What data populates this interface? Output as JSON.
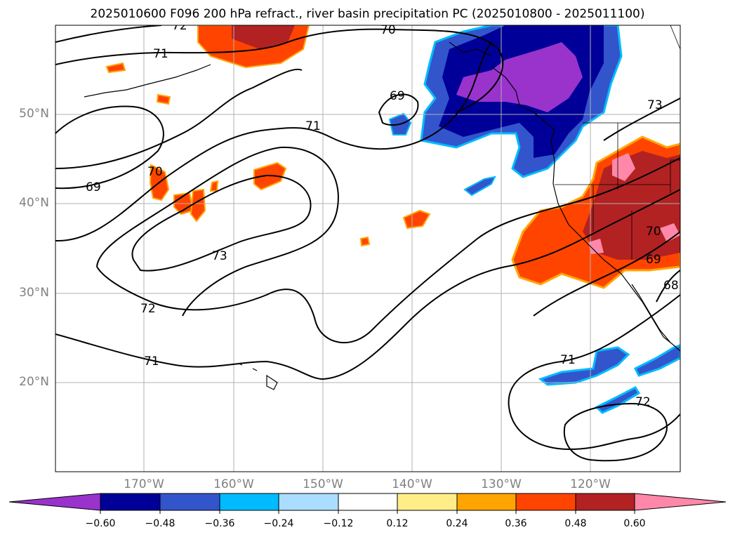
{
  "title": "2025010600 F096 200 hPa refract., river basin precipitation PC (2025010800 - 2025011100)",
  "lat_labels": [
    "50°N",
    "40°N",
    "30°N",
    "20°N"
  ],
  "lon_labels": [
    "170°W",
    "160°W",
    "150°W",
    "140°W",
    "130°W",
    "120°W"
  ],
  "contour_labels": [
    "72",
    "70",
    "71",
    "69",
    "71",
    "70",
    "69",
    "73",
    "73",
    "70",
    "69",
    "68",
    "72",
    "71",
    "71",
    "72"
  ],
  "colorbar": {
    "ticks": [
      "−0.60",
      "−0.48",
      "−0.36",
      "−0.24",
      "−0.12",
      "0.12",
      "0.24",
      "0.36",
      "0.48",
      "0.60"
    ],
    "colors": [
      "#9933cc",
      "#000099",
      "#3355cc",
      "#00bbff",
      "#aaddff",
      "#ffffff",
      "#ffee88",
      "#ffa500",
      "#ff4400",
      "#b22222",
      "#ff88aa"
    ]
  },
  "colors": {
    "purple": "#9933cc",
    "navy": "#000099",
    "blue": "#3355cc",
    "cyan": "#00bbff",
    "lightblue": "#aaddff",
    "yellow": "#ffee88",
    "orange": "#ffa500",
    "redorange": "#ff4400",
    "darkred": "#b22222",
    "pink": "#ff88aa"
  }
}
